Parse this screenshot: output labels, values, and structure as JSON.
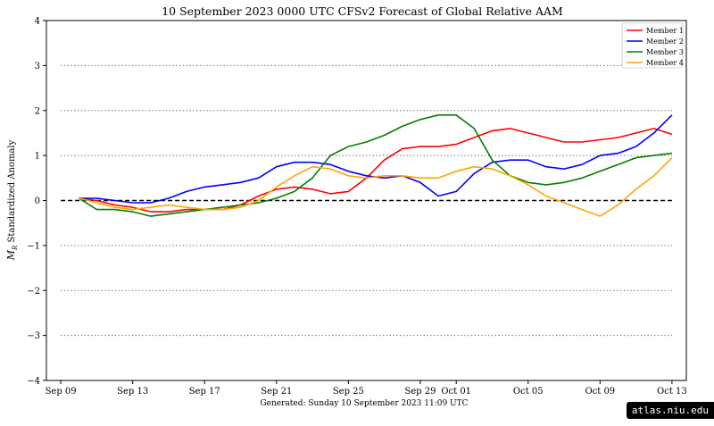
{
  "chart_data": {
    "type": "line",
    "title": "10  September  2023 0000 UTC   CFSv2 Forecast of Global Relative AAM",
    "ylabel": "M_R Standardized Anomaly",
    "ylabel_main": "M",
    "ylabel_sub": "R",
    "ylabel_rest": " Standardized Anomaly",
    "xlabel": "",
    "footnote": "Generated: Sunday  10  September  2023  11:09 UTC",
    "ylim": [
      -4,
      4
    ],
    "yticks": [
      -4,
      -3,
      -2,
      -1,
      0,
      1,
      2,
      3,
      4
    ],
    "ytick_labels": [
      "−4",
      "−3",
      "−2",
      "−1",
      "0",
      "1",
      "2",
      "3",
      "4"
    ],
    "xlim": [
      -0.8,
      34.8
    ],
    "xticks": [
      {
        "day": 0,
        "label": "Sep 09"
      },
      {
        "day": 4,
        "label": "Sep 13"
      },
      {
        "day": 8,
        "label": "Sep 17"
      },
      {
        "day": 12,
        "label": "Sep 21"
      },
      {
        "day": 16,
        "label": "Sep 25"
      },
      {
        "day": 20,
        "label": "Sep 29"
      },
      {
        "day": 22,
        "label": "Oct 01"
      },
      {
        "day": 26,
        "label": "Oct 05"
      },
      {
        "day": 30,
        "label": "Oct 09"
      },
      {
        "day": 34,
        "label": "Oct 13"
      }
    ],
    "grid": "horizontal dotted at -3, -2, -1, 1, 2, 3",
    "zero_line": "dashed",
    "legend_position": "top-right",
    "series": [
      {
        "name": "Member 1",
        "color": "#ff0000",
        "x": [
          1,
          2,
          3,
          4,
          5,
          6,
          7,
          8,
          9,
          10,
          11,
          12,
          13,
          14,
          15,
          16,
          17,
          18,
          19,
          20,
          21,
          22,
          23,
          24,
          25,
          26,
          27,
          28,
          29,
          30,
          31,
          32,
          33,
          34
        ],
        "y": [
          0.05,
          0.0,
          -0.1,
          -0.15,
          -0.25,
          -0.25,
          -0.2,
          -0.2,
          -0.2,
          -0.1,
          0.1,
          0.25,
          0.3,
          0.25,
          0.15,
          0.2,
          0.5,
          0.9,
          1.15,
          1.2,
          1.2,
          1.25,
          1.4,
          1.55,
          1.6,
          1.5,
          1.4,
          1.3,
          1.3,
          1.35,
          1.4,
          1.5,
          1.6,
          1.47
        ]
      },
      {
        "name": "Member 2",
        "color": "#0000ff",
        "x": [
          1,
          2,
          3,
          4,
          5,
          6,
          7,
          8,
          9,
          10,
          11,
          12,
          13,
          14,
          15,
          16,
          17,
          18,
          19,
          20,
          21,
          22,
          23,
          24,
          25,
          26,
          27,
          28,
          29,
          30,
          31,
          32,
          33,
          34
        ],
        "y": [
          0.05,
          0.05,
          0.0,
          -0.05,
          -0.05,
          0.05,
          0.2,
          0.3,
          0.35,
          0.4,
          0.5,
          0.75,
          0.85,
          0.85,
          0.8,
          0.65,
          0.55,
          0.5,
          0.55,
          0.4,
          0.1,
          0.2,
          0.6,
          0.85,
          0.9,
          0.9,
          0.75,
          0.7,
          0.8,
          1.0,
          1.05,
          1.2,
          1.5,
          1.9
        ]
      },
      {
        "name": "Member 3",
        "color": "#008000",
        "x": [
          1,
          2,
          3,
          4,
          5,
          6,
          7,
          8,
          9,
          10,
          11,
          12,
          13,
          14,
          15,
          16,
          17,
          18,
          19,
          20,
          21,
          22,
          23,
          24,
          25,
          26,
          27,
          28,
          29,
          30,
          31,
          32,
          33,
          34
        ],
        "y": [
          0.05,
          -0.2,
          -0.2,
          -0.25,
          -0.35,
          -0.3,
          -0.25,
          -0.2,
          -0.15,
          -0.1,
          -0.05,
          0.05,
          0.2,
          0.5,
          1.0,
          1.2,
          1.3,
          1.45,
          1.65,
          1.8,
          1.9,
          1.9,
          1.6,
          0.9,
          0.55,
          0.4,
          0.35,
          0.4,
          0.5,
          0.65,
          0.8,
          0.95,
          1.0,
          1.05
        ]
      },
      {
        "name": "Member 4",
        "color": "#ffa500",
        "x": [
          1,
          2,
          3,
          4,
          5,
          6,
          7,
          8,
          9,
          10,
          11,
          12,
          13,
          14,
          15,
          16,
          17,
          18,
          19,
          20,
          21,
          22,
          23,
          24,
          25,
          26,
          27,
          28,
          29,
          30,
          31,
          32,
          33,
          34
        ],
        "y": [
          0.05,
          -0.05,
          -0.15,
          -0.2,
          -0.15,
          -0.1,
          -0.15,
          -0.2,
          -0.2,
          -0.15,
          0.0,
          0.3,
          0.55,
          0.75,
          0.7,
          0.55,
          0.5,
          0.55,
          0.55,
          0.5,
          0.5,
          0.65,
          0.75,
          0.7,
          0.55,
          0.35,
          0.1,
          -0.05,
          -0.2,
          -0.35,
          -0.1,
          0.25,
          0.55,
          0.95
        ]
      }
    ]
  },
  "badge": "atlas.niu.edu"
}
